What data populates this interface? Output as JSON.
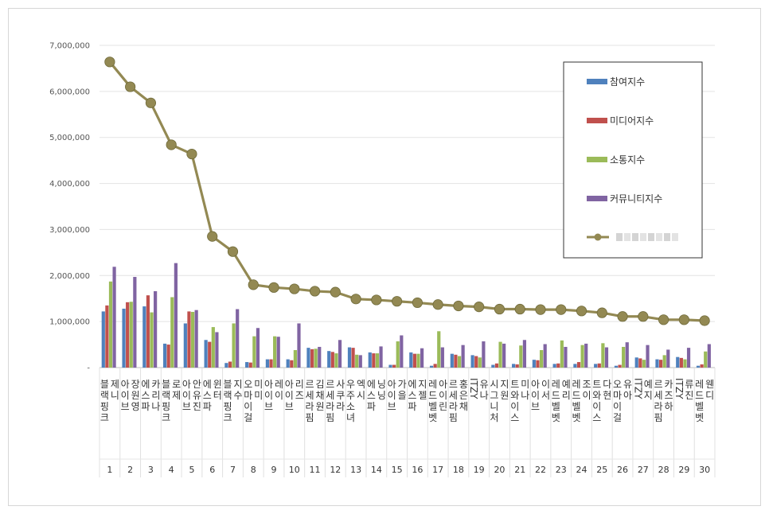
{
  "chart_data": {
    "type": "bar",
    "ylim": [
      0,
      7000000
    ],
    "y_ticks": [
      "-",
      "1,000,000",
      "2,000,000",
      "3,000,000",
      "4,000,000",
      "5,000,000",
      "6,000,000",
      "7,000,000"
    ],
    "grid": true,
    "legend_position": "top-right",
    "categories": [
      "블랙핑크 제니",
      "아이브 장원영",
      "에스파 카리나",
      "블랙핑크 로제",
      "아이브 안유진",
      "에스파 윈터",
      "블랙핑크 지수",
      "오마이걸 미미",
      "아이브 레이",
      "아이브 리즈",
      "르세라핌 김채원",
      "르세라핌 사쿠라",
      "우주소녀 엑시",
      "에스파 닝닝",
      "아이브 가을",
      "에스파 지젤",
      "레드벨벳 아이린",
      "르세라핌 홍은채",
      "ITZY 유나",
      "시그니처 지원",
      "트와이스 미나",
      "아이브 이서",
      "레드벨벳 예리",
      "레드벨벳 조이",
      "트와이스 다현",
      "오마이걸 유아",
      "ITZY 예지",
      "르세라핌 카즈하",
      "ITZY 류진",
      "레드벨벳 웬디"
    ],
    "ranks": [
      "1",
      "2",
      "3",
      "4",
      "5",
      "6",
      "7",
      "8",
      "9",
      "10",
      "11",
      "12",
      "13",
      "14",
      "15",
      "16",
      "17",
      "18",
      "19",
      "20",
      "21",
      "22",
      "23",
      "24",
      "25",
      "26",
      "27",
      "28",
      "29",
      "30"
    ],
    "series": [
      {
        "name": "참여지수",
        "color": "#4f81bd",
        "values": [
          1220000,
          1280000,
          1330000,
          520000,
          960000,
          600000,
          100000,
          120000,
          180000,
          180000,
          430000,
          360000,
          440000,
          330000,
          60000,
          330000,
          40000,
          300000,
          270000,
          60000,
          80000,
          170000,
          80000,
          80000,
          80000,
          40000,
          220000,
          180000,
          230000,
          40000
        ]
      },
      {
        "name": "미디어지수",
        "color": "#c0504d",
        "values": [
          1350000,
          1420000,
          1570000,
          500000,
          1220000,
          560000,
          130000,
          110000,
          180000,
          160000,
          400000,
          340000,
          430000,
          310000,
          60000,
          300000,
          80000,
          280000,
          250000,
          90000,
          70000,
          160000,
          90000,
          120000,
          90000,
          60000,
          200000,
          170000,
          210000,
          70000
        ]
      },
      {
        "name": "소통지수",
        "color": "#9bbb59",
        "values": [
          1870000,
          1430000,
          1200000,
          1530000,
          1210000,
          880000,
          960000,
          680000,
          680000,
          380000,
          410000,
          310000,
          280000,
          310000,
          570000,
          300000,
          790000,
          250000,
          220000,
          560000,
          480000,
          380000,
          590000,
          490000,
          530000,
          450000,
          170000,
          270000,
          180000,
          350000
        ]
      },
      {
        "name": "커뮤니티지수",
        "color": "#8064a2",
        "values": [
          2190000,
          1970000,
          1660000,
          2270000,
          1250000,
          770000,
          1270000,
          860000,
          670000,
          960000,
          450000,
          600000,
          270000,
          460000,
          700000,
          420000,
          440000,
          490000,
          570000,
          520000,
          600000,
          510000,
          450000,
          520000,
          440000,
          550000,
          490000,
          390000,
          430000,
          510000
        ]
      }
    ],
    "line_series": {
      "color": "#938953",
      "values": [
        6640000,
        6100000,
        5750000,
        4840000,
        4640000,
        2850000,
        2520000,
        1800000,
        1740000,
        1710000,
        1660000,
        1640000,
        1490000,
        1470000,
        1440000,
        1410000,
        1370000,
        1340000,
        1320000,
        1270000,
        1270000,
        1260000,
        1260000,
        1230000,
        1190000,
        1110000,
        1110000,
        1040000,
        1040000,
        1020000
      ]
    }
  }
}
